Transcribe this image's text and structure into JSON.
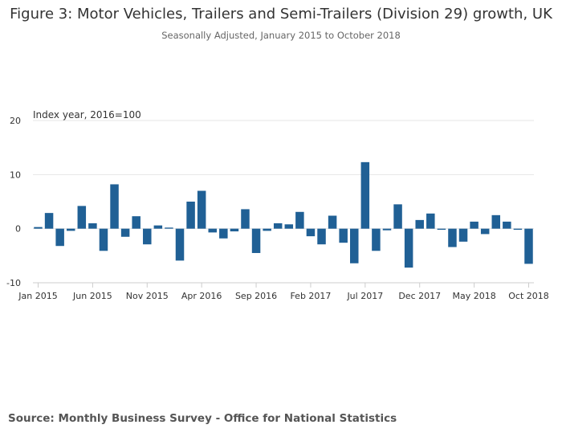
{
  "chart_data": {
    "type": "bar",
    "title": "Figure 3: Motor Vehicles, Trailers and Semi-Trailers (Division 29) growth, UK",
    "subtitle": "Seasonally Adjusted, January 2015 to October 2018",
    "ylabel": "Index year, 2016=100",
    "xlabel": "",
    "ylim": [
      -10,
      20
    ],
    "yticks": [
      -10,
      0,
      10,
      20
    ],
    "grid": true,
    "bar_color": "#206095",
    "categories": [
      "Jan 2015",
      "Feb 2015",
      "Mar 2015",
      "Apr 2015",
      "May 2015",
      "Jun 2015",
      "Jul 2015",
      "Aug 2015",
      "Sep 2015",
      "Oct 2015",
      "Nov 2015",
      "Dec 2015",
      "Jan 2016",
      "Feb 2016",
      "Mar 2016",
      "Apr 2016",
      "May 2016",
      "Jun 2016",
      "Jul 2016",
      "Aug 2016",
      "Sep 2016",
      "Oct 2016",
      "Nov 2016",
      "Dec 2016",
      "Jan 2017",
      "Feb 2017",
      "Mar 2017",
      "Apr 2017",
      "May 2017",
      "Jun 2017",
      "Jul 2017",
      "Aug 2017",
      "Sep 2017",
      "Oct 2017",
      "Nov 2017",
      "Dec 2017",
      "Jan 2018",
      "Feb 2018",
      "Mar 2018",
      "Apr 2018",
      "May 2018",
      "Jun 2018",
      "Jul 2018",
      "Aug 2018",
      "Sep 2018",
      "Oct 2018"
    ],
    "values": [
      0.3,
      2.9,
      -3.2,
      -0.4,
      4.2,
      1.0,
      -4.1,
      8.2,
      -1.5,
      2.3,
      -2.9,
      0.6,
      0.2,
      -5.9,
      5.0,
      7.0,
      -0.7,
      -1.8,
      -0.5,
      3.6,
      -4.5,
      -0.4,
      1.0,
      0.8,
      3.1,
      -1.4,
      -2.9,
      2.4,
      -2.6,
      -6.4,
      12.3,
      -4.1,
      -0.3,
      4.5,
      -7.2,
      1.6,
      2.8,
      -0.2,
      -3.4,
      -2.4,
      1.3,
      -1.0,
      2.5,
      1.3,
      -0.2,
      -6.5
    ],
    "tick_labels": [
      "Jan 2015",
      "Jun 2015",
      "Nov 2015",
      "Apr 2016",
      "Sep 2016",
      "Feb 2017",
      "Jul 2017",
      "Dec 2017",
      "May 2018",
      "Oct 2018"
    ]
  },
  "source": "Source: Monthly Business Survey - Office for National Statistics"
}
